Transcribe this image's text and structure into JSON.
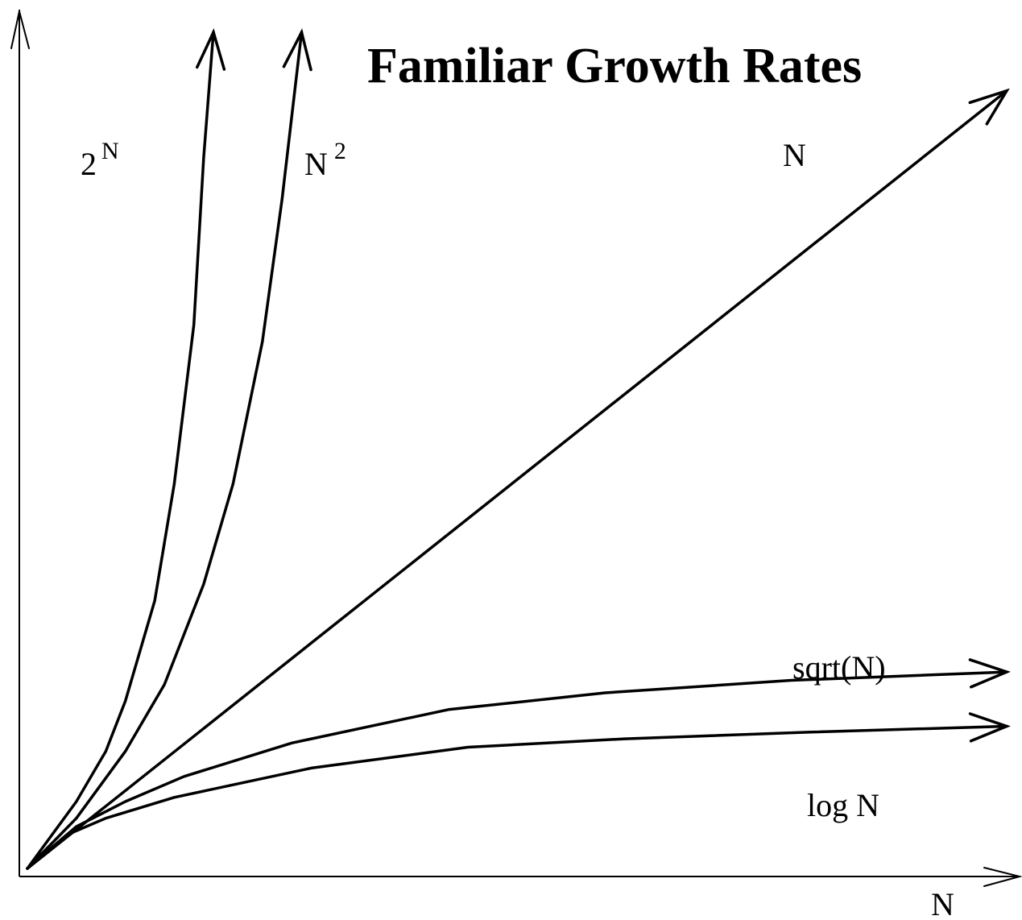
{
  "chart_data": {
    "type": "line",
    "title": "Familiar Growth Rates",
    "xlabel": "N",
    "ylabel": "",
    "grid": false,
    "legend": "none",
    "series": [
      {
        "name": "2",
        "name_sup": "N",
        "role": "2^N",
        "points": [
          [
            0,
            0
          ],
          [
            0.05,
            0.08
          ],
          [
            0.08,
            0.14
          ],
          [
            0.1,
            0.2
          ],
          [
            0.13,
            0.32
          ],
          [
            0.15,
            0.46
          ],
          [
            0.17,
            0.65
          ],
          [
            0.18,
            0.85
          ],
          [
            0.19,
            1.0
          ]
        ]
      },
      {
        "name": "N",
        "name_sup": "2",
        "role": "N^2",
        "points": [
          [
            0,
            0
          ],
          [
            0.05,
            0.06
          ],
          [
            0.1,
            0.14
          ],
          [
            0.14,
            0.22
          ],
          [
            0.18,
            0.34
          ],
          [
            0.21,
            0.46
          ],
          [
            0.24,
            0.63
          ],
          [
            0.26,
            0.8
          ],
          [
            0.28,
            1.0
          ]
        ]
      },
      {
        "name": "N",
        "name_sup": "",
        "role": "N",
        "points": [
          [
            0,
            0
          ],
          [
            1.0,
            0.93
          ]
        ]
      },
      {
        "name": "sqrt(N)",
        "name_sup": "",
        "role": "sqrt",
        "points": [
          [
            0,
            0
          ],
          [
            0.05,
            0.05
          ],
          [
            0.1,
            0.08
          ],
          [
            0.16,
            0.11
          ],
          [
            0.27,
            0.15
          ],
          [
            0.43,
            0.19
          ],
          [
            0.59,
            0.21
          ],
          [
            0.78,
            0.225
          ],
          [
            1.0,
            0.235
          ]
        ]
      },
      {
        "name": "log N",
        "name_sup": "",
        "role": "log",
        "points": [
          [
            0,
            0
          ],
          [
            0.04,
            0.04
          ],
          [
            0.08,
            0.06
          ],
          [
            0.15,
            0.085
          ],
          [
            0.29,
            0.12
          ],
          [
            0.45,
            0.145
          ],
          [
            0.61,
            0.155
          ],
          [
            0.8,
            0.163
          ],
          [
            1.0,
            0.17
          ]
        ]
      }
    ],
    "colors": {
      "line": "#000000",
      "background": "#ffffff"
    }
  }
}
